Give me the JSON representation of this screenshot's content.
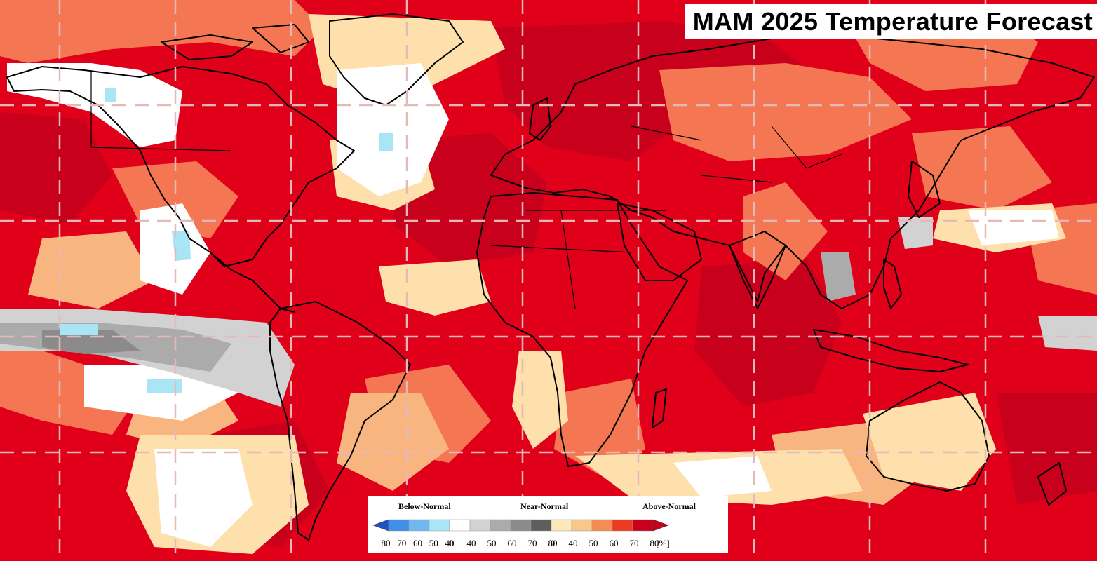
{
  "title": "MAM 2025 Temperature Forecast",
  "legend": {
    "categories": [
      {
        "label": "Below-Normal",
        "ticks": [
          "80",
          "70",
          "60",
          "50",
          "40"
        ],
        "colors": [
          "#1f52c8",
          "#3f8ee8",
          "#70b8f0",
          "#a8e6f6"
        ]
      },
      {
        "label": "Near-Normal",
        "ticks": [
          "0",
          "40",
          "50",
          "60",
          "70",
          "80"
        ],
        "colors": [
          "#ffffff",
          "#d2d2d2",
          "#ababab",
          "#8b8b8b",
          "#5e5e5e"
        ]
      },
      {
        "label": "Above-Normal",
        "ticks": [
          "0",
          "40",
          "50",
          "60",
          "70",
          "80"
        ],
        "colors": [
          "#fde8b9",
          "#f9c886",
          "#f58c55",
          "#ec3c20",
          "#c8001c"
        ]
      }
    ],
    "unit": "[%]"
  },
  "colors": {
    "above_80": "#c8001c",
    "above_70": "#ec2418",
    "above_60": "#f57652",
    "above_50": "#f9b57f",
    "above_40": "#fde0ac",
    "near_normal_40": "#ffffff",
    "near_normal_50": "#d2d2d2",
    "near_normal_60": "#ababab",
    "near_normal_70": "#8b8b8b",
    "below_40": "#a8e6f6",
    "coastline": "#000000",
    "grid": "#e6b9b9",
    "ocean_base": "#e1001a"
  }
}
